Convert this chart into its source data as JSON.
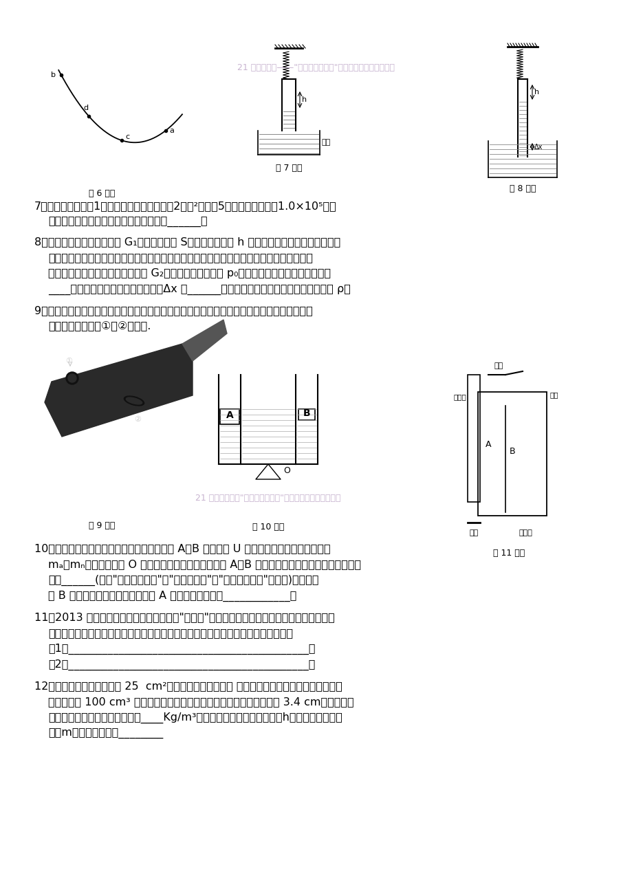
{
  "page_background": "#ffffff",
  "watermark_text": "21 世纪教育网——走进重高实验班：科学竞赛资料防伪标志",
  "watermark_color": "#c8b4d0",
  "fig6_label": "第 6 题图",
  "fig7_label": "第 7 题图",
  "fig8_label": "第 8 题图",
  "fig9_label": "第 9 题图",
  "fig10_label": "第 10 题图",
  "fig11_label": "第 11 题图"
}
